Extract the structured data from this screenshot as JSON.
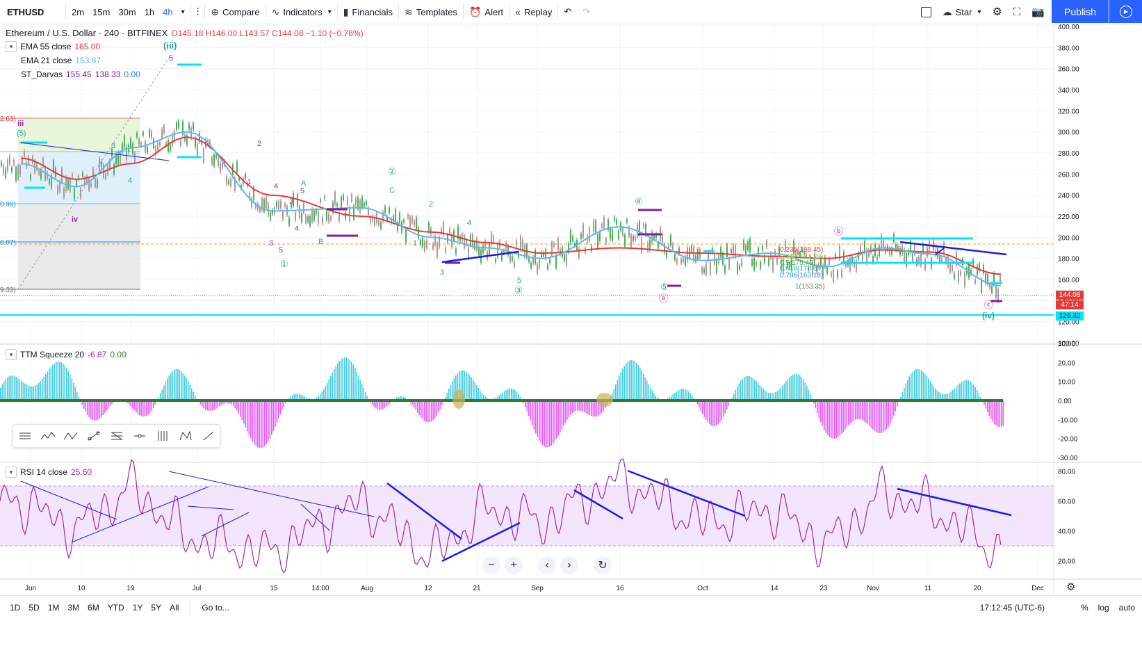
{
  "toolbar": {
    "symbol": "ETHUSD",
    "intervals": [
      "2m",
      "15m",
      "30m",
      "1h",
      "4h"
    ],
    "active_interval": "4h",
    "compare": "Compare",
    "indicators": "Indicators",
    "financials": "Financials",
    "templates": "Templates",
    "alert": "Alert",
    "replay": "Replay",
    "star": "Star",
    "publish": "Publish"
  },
  "legend": {
    "title": "Ethereum / U.S. Dollar · 240 · BITFINEX",
    "ohlc": "O145.18 H146.00 L143.57 C144.08 −1.10 (−0.76%)",
    "ema55_label": "EMA 55 close",
    "ema55_value": "165.00",
    "ema21_label": "EMA 21 close",
    "ema21_value": "153.87",
    "darvas_label": "ST_Darvas",
    "darvas_v1": "155.45",
    "darvas_v2": "138.33",
    "darvas_v3": "0.00",
    "ttm_label": "TTM Squeeze 20",
    "ttm_v1": "-6.87",
    "ttm_v2": "0.00",
    "rsi_label": "RSI 14 close",
    "rsi_value": "25.60"
  },
  "price_axis": {
    "ticks": [
      "400.00",
      "380.00",
      "360.00",
      "340.00",
      "320.00",
      "300.00",
      "280.00",
      "260.00",
      "240.00",
      "220.00",
      "200.00",
      "180.00",
      "160.00",
      "140.00",
      "120.00",
      "100.00"
    ]
  },
  "tags": {
    "last_price": "144.08",
    "countdown": "47:14",
    "support": "126.32"
  },
  "ttm_axis": {
    "ticks": [
      "30.00",
      "20.00",
      "10.00",
      "0.00",
      "-10.00",
      "-20.00",
      "-30.00"
    ]
  },
  "rsi_axis": {
    "ticks": [
      "80.00",
      "60.00",
      "40.00",
      "20.00"
    ]
  },
  "time_axis": {
    "ticks": [
      "Jun",
      "10",
      "19",
      "Jul",
      "15",
      "14:00",
      "Aug",
      "12",
      "21",
      "Sep",
      "16",
      "Oct",
      "14",
      "23",
      "Nov",
      "11",
      "20",
      "Dec"
    ]
  },
  "wave_labels": [
    "(iii)",
    "iii",
    "(5)",
    "iv",
    "①",
    "②",
    "③",
    "④",
    "⑤",
    "ⓐ",
    "ⓑ",
    "ⓒ",
    "(iv)",
    "A",
    "B",
    "C",
    "1",
    "2",
    "3",
    "4",
    "5"
  ],
  "fib_labels": {
    "f0236": "0.236(188.45)",
    "f0382": "0.382(181.28)",
    "f05": "0.5(175.49)",
    "f0618": "0.618(170.69)",
    "f0786": "0.786(163.18)",
    "f1": "1(153.35)",
    "left1": "2.63)",
    "left2": "0.98)",
    "left3": "6.07)",
    "left4": "9.33)"
  },
  "ranges": [
    "1D",
    "5D",
    "1M",
    "3M",
    "6M",
    "YTD",
    "1Y",
    "5Y",
    "All"
  ],
  "goto": "Go to...",
  "clock": "17:12:45 (UTC-6)",
  "scale_buttons": [
    "%",
    "log",
    "auto"
  ],
  "colors": {
    "ema55": "#e53935",
    "ema21": "#5fb8e8",
    "rsi": "#9c27b0",
    "rsi_band": "#f3e5fb",
    "accent": "#2962ff",
    "cyan": "#00e5ff",
    "trend": "#1a1aee"
  },
  "chart_data": [
    {
      "type": "line",
      "title": "Ethereum / U.S. Dollar · 240 · BITFINEX",
      "x": [
        "Jun",
        "10",
        "19",
        "Jul",
        "15",
        "Aug",
        "12",
        "21",
        "Sep",
        "16",
        "Oct",
        "14",
        "23",
        "Nov",
        "11",
        "20"
      ],
      "series": [
        {
          "name": "EMA 55 close",
          "values": [
            275,
            255,
            270,
            295,
            240,
            220,
            205,
            195,
            185,
            190,
            185,
            182,
            180,
            188,
            186,
            165
          ]
        },
        {
          "name": "EMA 21 close",
          "values": [
            270,
            248,
            285,
            300,
            225,
            228,
            200,
            190,
            180,
            210,
            178,
            185,
            172,
            190,
            184,
            154
          ]
        }
      ],
      "ylim": [
        100,
        400
      ]
    },
    {
      "type": "bar",
      "title": "TTM Squeeze 20",
      "ylim": [
        -30,
        30
      ]
    },
    {
      "type": "line",
      "title": "RSI 14 close",
      "ylim": [
        10,
        90
      ],
      "series": [
        {
          "name": "RSI 14 close",
          "values": [
            60,
            40,
            70,
            35,
            25,
            60,
            22,
            55,
            45,
            75,
            45,
            55,
            30,
            65,
            55,
            25
          ]
        }
      ]
    }
  ]
}
